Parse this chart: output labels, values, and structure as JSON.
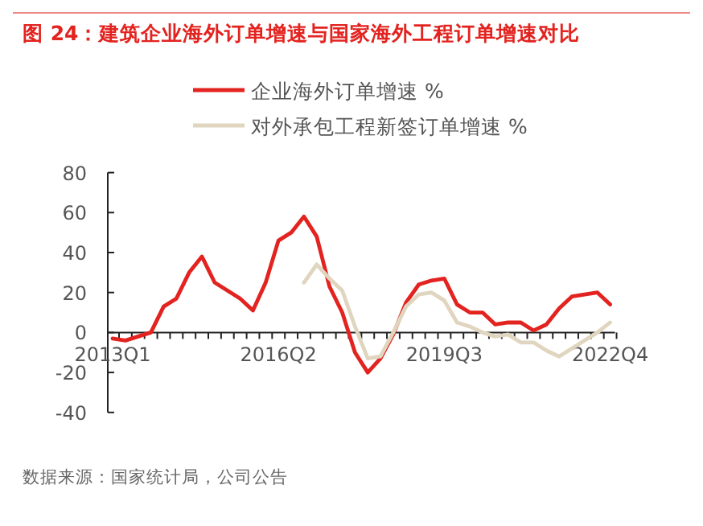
{
  "chart_data": {
    "type": "line",
    "title": "图 24：建筑企业海外订单增速与国家海外工程订单增速对比",
    "categories": [
      "2013Q1",
      null,
      null,
      null,
      null,
      null,
      null,
      null,
      null,
      null,
      null,
      null,
      null,
      "2016Q2",
      null,
      null,
      null,
      null,
      null,
      null,
      null,
      null,
      null,
      null,
      null,
      null,
      "2019Q3",
      null,
      null,
      null,
      null,
      null,
      null,
      null,
      null,
      null,
      null,
      null,
      null,
      "2022Q4"
    ],
    "series": [
      {
        "name": "企业海外订单增速 %",
        "color": "#e3231f",
        "values": [
          -3,
          -4,
          -2,
          0,
          13,
          17,
          30,
          38,
          25,
          21,
          17,
          11,
          25,
          46,
          50,
          58,
          48,
          23,
          10,
          -10,
          -20,
          -13,
          -1,
          15,
          24,
          26,
          27,
          14,
          10,
          10,
          4,
          5,
          5,
          1,
          4,
          12,
          18,
          19,
          20,
          14
        ]
      },
      {
        "name": "对外承包工程新签订单增速 %",
        "color": "#e0d5bf",
        "values": [
          null,
          null,
          null,
          null,
          null,
          null,
          null,
          null,
          null,
          null,
          null,
          null,
          null,
          null,
          null,
          25,
          34,
          27,
          21,
          3,
          -13,
          -12,
          0,
          13,
          19,
          20,
          16,
          5,
          3,
          0,
          -2,
          -1,
          -5,
          -5,
          -9,
          -12,
          -8,
          -4,
          0,
          5
        ]
      }
    ],
    "ylim": [
      -40,
      80
    ],
    "yticks": [
      -40,
      -20,
      0,
      20,
      40,
      60,
      80
    ],
    "grid": false,
    "legend": "top",
    "marker": "none",
    "line_style": "solid",
    "annotations": [
      "数据来源：国家统计局，公司公告"
    ]
  }
}
